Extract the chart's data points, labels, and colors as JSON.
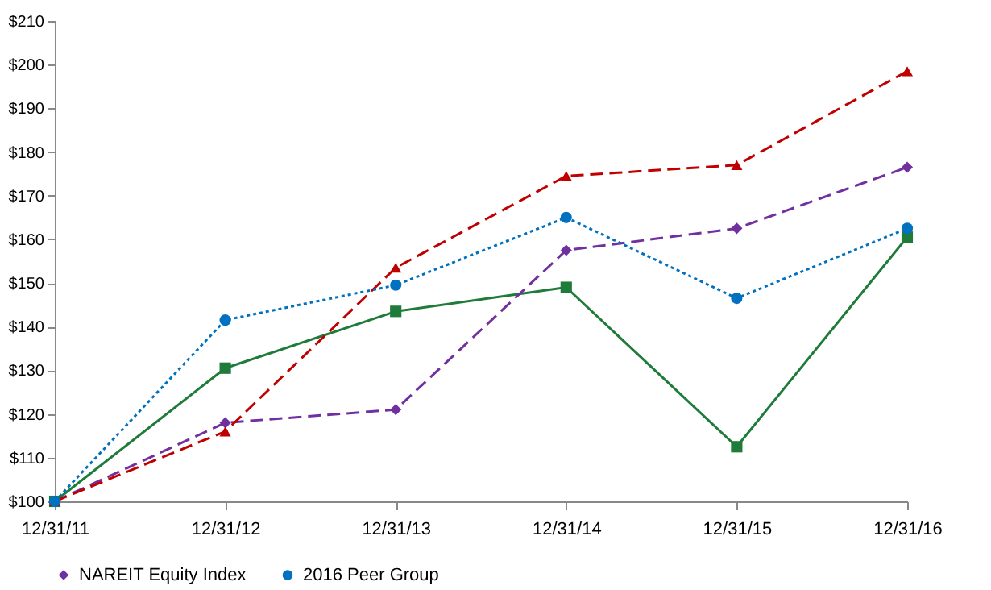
{
  "chart_data": {
    "type": "line",
    "categories": [
      "12/31/11",
      "12/31/12",
      "12/31/13",
      "12/31/14",
      "12/31/15",
      "12/31/16"
    ],
    "ylim": [
      100,
      210
    ],
    "yticks": [
      {
        "value": 100,
        "label": "$100"
      },
      {
        "value": 110,
        "label": "$110"
      },
      {
        "value": 120,
        "label": "$120"
      },
      {
        "value": 130,
        "label": "$130"
      },
      {
        "value": 140,
        "label": "$140"
      },
      {
        "value": 150,
        "label": "$150"
      },
      {
        "value": 160,
        "label": "$160"
      },
      {
        "value": 170,
        "label": "$170"
      },
      {
        "value": 180,
        "label": "$180"
      },
      {
        "value": 190,
        "label": "$190"
      },
      {
        "value": 200,
        "label": "$200"
      },
      {
        "value": 210,
        "label": "$210"
      }
    ],
    "grid": false,
    "legend": "bottom",
    "series": [
      {
        "color": "#1e7b3a",
        "marker": "square",
        "line_style": "solid",
        "values": [
          100,
          130.5,
          143.5,
          149,
          112.5,
          160.5
        ]
      },
      {
        "name": "NAREIT Equity Index",
        "color": "#7030a0",
        "marker": "diamond",
        "line_style": "dashed",
        "values": [
          100,
          118,
          121,
          157.5,
          162.5,
          176.5
        ]
      },
      {
        "color": "#c00000",
        "marker": "triangle",
        "line_style": "dashed",
        "values": [
          100,
          116,
          153.5,
          174.5,
          177,
          198.5
        ]
      },
      {
        "name": "2016 Peer Group",
        "color": "#0070c0",
        "marker": "circle",
        "line_style": "dotted",
        "values": [
          100,
          141.5,
          149.5,
          165,
          146.5,
          162.5
        ]
      }
    ]
  }
}
